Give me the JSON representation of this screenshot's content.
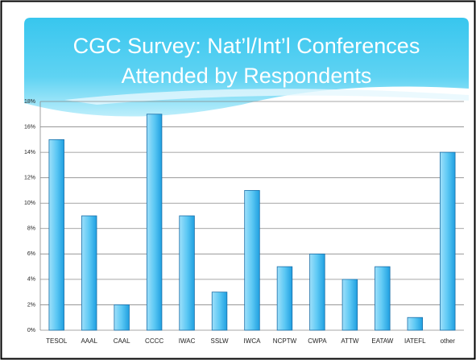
{
  "chart_data": {
    "type": "bar",
    "title_lines": [
      "CGC Survey: Nat’l/Int’l Conferences",
      "Attended by Respondents"
    ],
    "categories": [
      "TESOL",
      "AAAL",
      "CAAL",
      "CCCC",
      "IWAC",
      "SSLW",
      "IWCA",
      "NCPTW",
      "CWPA",
      "ATTW",
      "EATAW",
      "IATEFL",
      "other"
    ],
    "values": [
      15,
      9,
      2,
      17,
      9,
      3,
      11,
      5,
      6,
      4,
      5,
      1,
      14
    ],
    "color": "#29a9e6",
    "ylim": [
      0,
      18
    ],
    "yticks": [
      {
        "value": 0,
        "label": "0%"
      },
      {
        "value": 2,
        "label": "2%"
      },
      {
        "value": 4,
        "label": "4%"
      },
      {
        "value": 6,
        "label": "6%"
      },
      {
        "value": 8,
        "label": "8%"
      },
      {
        "value": 10,
        "label": "10%"
      },
      {
        "value": 12,
        "label": "12%"
      },
      {
        "value": 14,
        "label": "14%"
      },
      {
        "value": 16,
        "label": "16%"
      },
      {
        "value": 18,
        "label": "18%"
      }
    ],
    "grid": true
  }
}
